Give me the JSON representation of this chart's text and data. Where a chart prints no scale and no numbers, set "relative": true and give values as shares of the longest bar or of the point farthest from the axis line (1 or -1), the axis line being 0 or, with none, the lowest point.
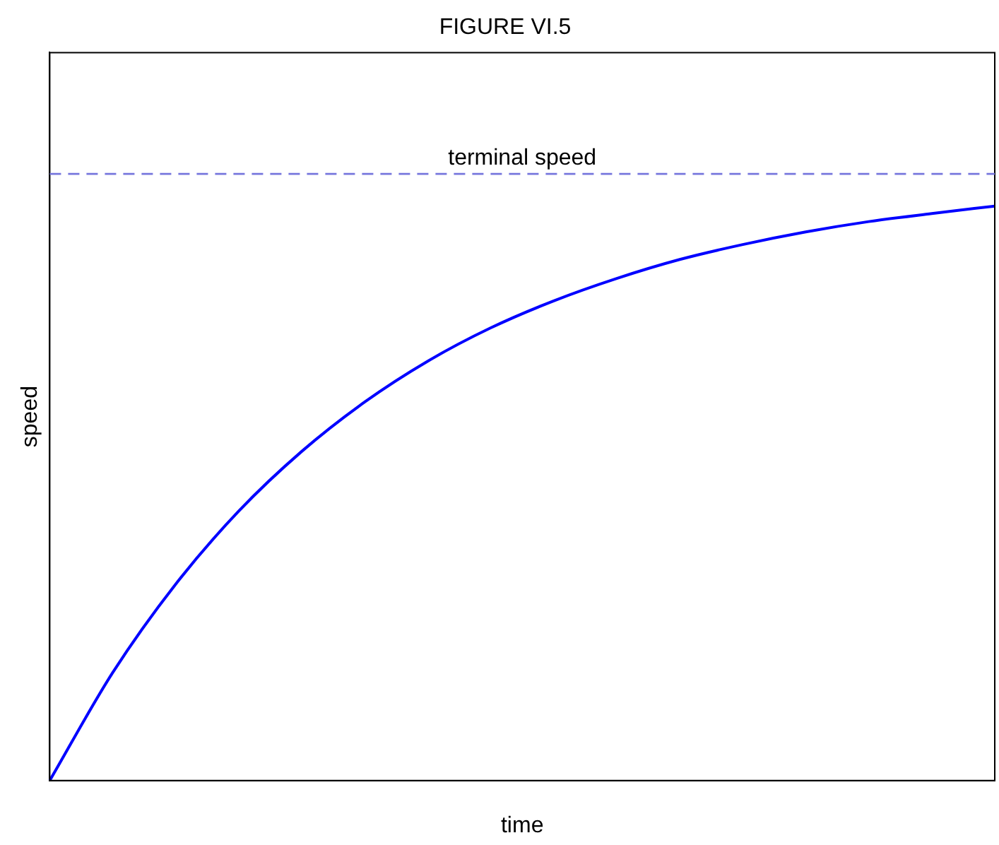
{
  "chart_data": {
    "type": "line",
    "title": "FIGURE VI.5",
    "xlabel": "time",
    "ylabel": "speed",
    "relative": true,
    "categories": [
      null,
      null,
      null,
      null,
      null,
      null,
      null,
      null,
      null,
      null,
      null,
      null,
      null,
      null,
      null,
      null
    ],
    "series": [
      {
        "color": "#0000ff",
        "values": [
          0,
          0.188,
          0.342,
          0.469,
          0.573,
          0.659,
          0.73,
          0.788,
          0.835,
          0.874,
          0.907,
          0.933,
          0.955,
          0.973,
          0.987,
          1.0
        ]
      }
    ],
    "ref_lines": [
      {
        "axis": "y",
        "value": 1.056,
        "label": "terminal speed",
        "color": "#7777dd",
        "line_style": "dashed"
      }
    ],
    "grid": false,
    "legend": false,
    "marker": "none",
    "line_style": "solid"
  }
}
